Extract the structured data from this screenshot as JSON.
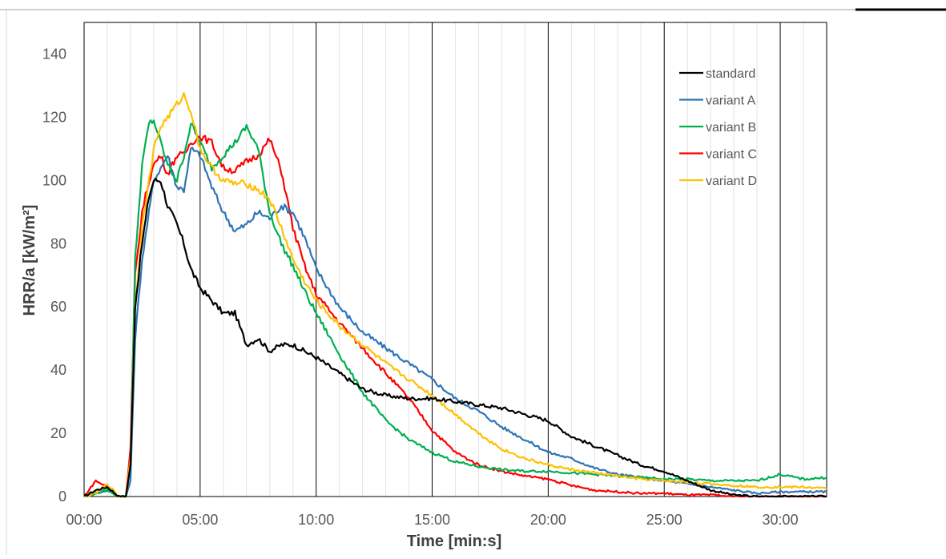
{
  "chart_data": {
    "type": "line",
    "title": "",
    "xlabel": "Time [min:s]",
    "ylabel": "HRR/a [kW/m²]",
    "x_unit": "minutes",
    "xlim": [
      0,
      32
    ],
    "ylim": [
      0,
      150
    ],
    "x_ticks": [
      "00:00",
      "05:00",
      "10:00",
      "15:00",
      "20:00",
      "25:00",
      "30:00"
    ],
    "x_tick_values": [
      0,
      5,
      10,
      15,
      20,
      25,
      30
    ],
    "y_ticks": [
      0,
      20,
      40,
      60,
      80,
      100,
      120,
      140
    ],
    "grid": "vertical major and minor lines",
    "legend_position": "top-right",
    "x": [
      0,
      0.5,
      1,
      1.5,
      1.8,
      2,
      2.2,
      2.5,
      2.8,
      3,
      3.3,
      3.6,
      4,
      4.3,
      4.6,
      5,
      5.5,
      6,
      6.5,
      7,
      7.5,
      8,
      8.5,
      9,
      9.5,
      10,
      11,
      12,
      13,
      14,
      15,
      16,
      17,
      18,
      19,
      20,
      21,
      22,
      23,
      24,
      25,
      26,
      27,
      28,
      29,
      30,
      31,
      32
    ],
    "series": [
      {
        "name": "standard",
        "color": "#000000",
        "values": [
          0,
          2,
          3,
          0,
          0,
          10,
          60,
          80,
          95,
          100,
          100,
          92,
          86,
          80,
          72,
          66,
          62,
          58,
          58,
          48,
          50,
          46,
          48,
          48,
          46,
          44,
          39,
          34,
          32,
          31,
          31,
          30,
          29,
          28,
          26,
          24,
          19,
          16,
          13,
          10,
          8,
          5,
          2,
          0.5,
          0,
          0,
          0,
          0
        ]
      },
      {
        "name": "variant A",
        "color": "#2E75B6",
        "values": [
          0,
          1,
          2,
          0,
          0,
          5,
          50,
          75,
          90,
          100,
          104,
          108,
          98,
          97,
          110,
          108,
          98,
          90,
          84,
          86,
          90,
          88,
          92,
          90,
          82,
          72,
          60,
          52,
          47,
          42,
          37,
          31,
          27,
          22,
          18,
          14,
          12,
          9,
          7,
          6,
          5,
          4,
          3,
          2,
          1,
          1.5,
          1.5,
          1.5
        ]
      },
      {
        "name": "variant B",
        "color": "#00B050",
        "values": [
          0,
          1,
          2,
          0,
          0,
          10,
          75,
          105,
          118,
          119,
          112,
          105,
          100,
          108,
          118,
          112,
          104,
          108,
          112,
          117,
          110,
          90,
          80,
          73,
          65,
          58,
          45,
          33,
          24,
          18,
          14,
          11,
          9.5,
          8.5,
          8,
          8,
          7.5,
          7,
          6.5,
          6,
          5.5,
          5.5,
          5,
          5,
          5,
          7,
          5.5,
          6
        ]
      },
      {
        "name": "variant C",
        "color": "#FF0000",
        "values": [
          0,
          5,
          3,
          0,
          0,
          15,
          70,
          90,
          100,
          105,
          108,
          102,
          108,
          108,
          112,
          114,
          112,
          104,
          103,
          106,
          108,
          113,
          103,
          85,
          73,
          64,
          55,
          47,
          39,
          31,
          21,
          14,
          10,
          8,
          6.5,
          5.5,
          3.5,
          2,
          1.5,
          1,
          1,
          0.5,
          0.5,
          0,
          0,
          0,
          0,
          0
        ]
      },
      {
        "name": "variant D",
        "color": "#FFC000",
        "values": [
          0,
          1,
          4,
          0,
          0,
          12,
          60,
          85,
          100,
          110,
          117,
          120,
          124,
          127,
          122,
          110,
          104,
          100,
          99,
          99,
          97,
          94,
          85,
          75,
          68,
          62,
          54,
          48,
          42,
          37,
          32,
          26,
          20,
          15,
          12,
          10,
          8.5,
          7.5,
          6.5,
          5.5,
          5,
          4.5,
          4,
          3.5,
          3,
          3,
          3,
          2.5
        ]
      }
    ]
  }
}
